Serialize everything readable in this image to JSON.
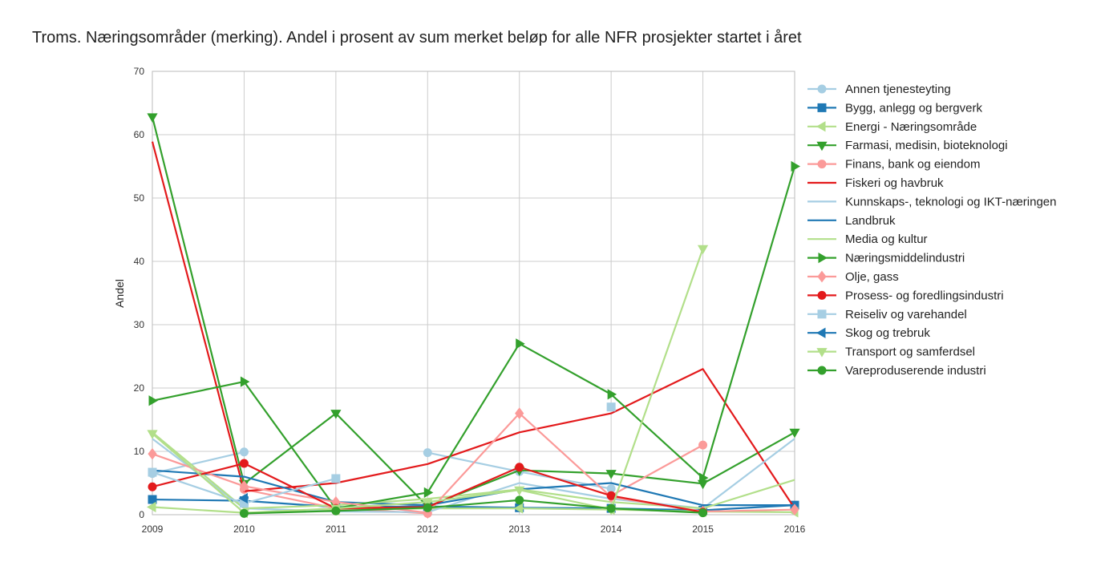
{
  "chart_data": {
    "type": "line",
    "title": "Troms. Næringsområder (merking). Andel i prosent av sum merket beløp for alle NFR prosjekter startet i året",
    "xlabel": "",
    "ylabel": "Andel",
    "x": [
      2009,
      2010,
      2011,
      2012,
      2013,
      2014,
      2015,
      2016
    ],
    "xlim": [
      2009,
      2016
    ],
    "ylim": [
      0,
      70
    ],
    "yticks": [
      0,
      10,
      20,
      30,
      40,
      50,
      60,
      70
    ],
    "grid": true,
    "legend_position": "right",
    "series": [
      {
        "name": "Annen tjenesteyting",
        "color": "#a6cee3",
        "marker": "circle",
        "values": [
          6.5,
          9.9,
          null,
          9.8,
          6.8,
          4.1,
          null,
          null
        ]
      },
      {
        "name": "Bygg, anlegg og bergverk",
        "color": "#1f78b4",
        "marker": "square",
        "values": [
          2.4,
          2.2,
          1.2,
          1.3,
          1.1,
          1.0,
          0.7,
          1.5
        ]
      },
      {
        "name": "Energi - Næringsområde",
        "color": "#b2df8a",
        "marker": "triangle-left",
        "values": [
          1.2,
          0.3,
          0.7,
          1.0,
          1.0,
          0.8,
          0.5,
          0.4
        ]
      },
      {
        "name": "Farmasi, medisin, bioteknologi",
        "color": "#33a02c",
        "marker": "triangle-down",
        "values": [
          62.8,
          4.9,
          16.0,
          1.3,
          7.0,
          6.5,
          4.9,
          13.0
        ]
      },
      {
        "name": "Finans, bank og eiendom",
        "color": "#fb9a99",
        "marker": "circle",
        "values": [
          null,
          4.0,
          1.0,
          0.2,
          null,
          3.0,
          11.0,
          null
        ]
      },
      {
        "name": "Fiskeri og havbruk",
        "color": "#e31a1c",
        "marker": "none",
        "values": [
          58.9,
          3.7,
          5.0,
          8.0,
          13.0,
          16.0,
          23.0,
          1.0
        ]
      },
      {
        "name": "Kunnskaps-, teknologi og IKT-næringen",
        "color": "#a6cee3",
        "marker": "none",
        "values": [
          12.0,
          1.0,
          0.5,
          0.4,
          5.0,
          2.5,
          1.0,
          12.0
        ]
      },
      {
        "name": "Landbruk",
        "color": "#1f78b4",
        "marker": "none",
        "values": [
          7.0,
          6.0,
          2.0,
          1.5,
          4.0,
          5.0,
          1.5,
          1.5
        ]
      },
      {
        "name": "Media og kultur",
        "color": "#b2df8a",
        "marker": "none",
        "values": [
          13.0,
          1.0,
          1.5,
          2.5,
          4.0,
          2.0,
          1.0,
          5.5
        ]
      },
      {
        "name": "Næringsmiddelindustri",
        "color": "#33a02c",
        "marker": "triangle-right",
        "values": [
          18.0,
          21.0,
          1.0,
          3.5,
          27.0,
          19.0,
          5.8,
          55.0
        ]
      },
      {
        "name": "Olje, gass",
        "color": "#fb9a99",
        "marker": "diamond",
        "values": [
          9.6,
          4.5,
          2.0,
          0.3,
          16.0,
          2.8,
          0.5,
          0.8
        ]
      },
      {
        "name": "Prosess- og foredlingsindustri",
        "color": "#e31a1c",
        "marker": "circle",
        "values": [
          4.4,
          8.1,
          1.0,
          1.2,
          7.5,
          3.0,
          0.4,
          null
        ]
      },
      {
        "name": "Reiseliv og varehandel",
        "color": "#a6cee3",
        "marker": "square",
        "values": [
          6.7,
          1.8,
          5.7,
          null,
          null,
          17.0,
          null,
          null
        ]
      },
      {
        "name": "Skog og trebruk",
        "color": "#1f78b4",
        "marker": "triangle-left",
        "values": [
          null,
          2.6,
          null,
          null,
          null,
          null,
          null,
          null
        ]
      },
      {
        "name": "Transport og samferdsel",
        "color": "#b2df8a",
        "marker": "triangle-down",
        "values": [
          12.8,
          0.3,
          1.0,
          2.0,
          3.9,
          0.8,
          42.0,
          null
        ]
      },
      {
        "name": "Vareproduserende industri",
        "color": "#33a02c",
        "marker": "circle",
        "values": [
          null,
          0.2,
          0.6,
          1.1,
          2.3,
          1.0,
          0.3,
          null
        ]
      }
    ]
  }
}
